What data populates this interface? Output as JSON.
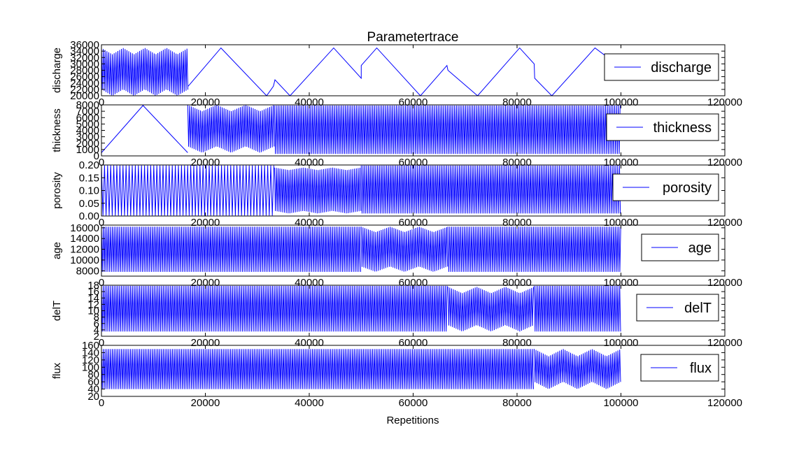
{
  "chart_data": {
    "type": "line",
    "title": "Parametertrace",
    "xlabel": "Repetitions",
    "x_ticks": [
      "0",
      "20000",
      "40000",
      "60000",
      "80000",
      "100000",
      "120000"
    ],
    "xlim": [
      0,
      120000
    ],
    "line_color": "#0000ff",
    "legend_position": "right",
    "grid": false,
    "n_repetitions": 100000,
    "panels": [
      {
        "name": "discharge",
        "ylabel": "discharge",
        "legend": "discharge",
        "ylim": [
          20000,
          36000
        ],
        "y_ticks": [
          "20000",
          "22000",
          "24000",
          "26000",
          "28000",
          "30000",
          "32000",
          "34000",
          "36000"
        ],
        "segments": [
          {
            "kind": "dense",
            "x": [
              0,
              16700
            ],
            "low": [
              20000,
              22000
            ],
            "high": [
              33000,
              35000
            ],
            "cycles": 4
          },
          {
            "kind": "path",
            "x": [
              16700,
              23000,
              31800,
              33100,
              33400,
              36300,
              44700,
              50000,
              50000,
              53000,
              61400,
              66500,
              66700,
              72400,
              80500,
              83300,
              83400,
              86700,
              95000,
              99900
            ],
            "y": [
              23000,
              35000,
              20000,
              23000,
              25000,
              20000,
              35000,
              25500,
              29500,
              35000,
              20000,
              29500,
              28000,
              20000,
              35000,
              30000,
              25500,
              20000,
              35000,
              29000
            ]
          }
        ]
      },
      {
        "name": "thickness",
        "ylabel": "thickness",
        "legend": "thickness",
        "ylim": [
          0,
          8000
        ],
        "y_ticks": [
          "0",
          "1000",
          "2000",
          "3000",
          "4000",
          "5000",
          "6000",
          "7000",
          "8000"
        ],
        "segments": [
          {
            "kind": "path",
            "x": [
              0,
              8000,
              16600
            ],
            "y": [
              500,
              7900,
              500
            ]
          },
          {
            "kind": "dense",
            "x": [
              16600,
              33300
            ],
            "low": [
              500,
              1500
            ],
            "high": [
              7000,
              8000
            ],
            "cycles": 3
          },
          {
            "kind": "dense",
            "x": [
              33300,
              100000
            ],
            "low": [
              300,
              300
            ],
            "high": [
              7900,
              7900
            ],
            "cycles": 0
          }
        ]
      },
      {
        "name": "porosity",
        "ylabel": "porosity",
        "legend": "porosity",
        "ylim": [
          0,
          0.2
        ],
        "y_ticks": [
          "0.00",
          "0.05",
          "0.10",
          "0.15",
          "0.20"
        ],
        "segments": [
          {
            "kind": "dense",
            "x": [
              0,
              33300
            ],
            "low": [
              0.002,
              0.002
            ],
            "high": [
              0.198,
              0.198
            ],
            "cycles": 0,
            "sparse": true
          },
          {
            "kind": "dense",
            "x": [
              33300,
              50000
            ],
            "low": [
              0.01,
              0.02
            ],
            "high": [
              0.18,
              0.19
            ],
            "cycles": 3
          },
          {
            "kind": "dense",
            "x": [
              50000,
              100000
            ],
            "low": [
              0.01,
              0.01
            ],
            "high": [
              0.198,
              0.198
            ],
            "cycles": 0
          }
        ]
      },
      {
        "name": "age",
        "ylabel": "age",
        "legend": "age",
        "ylim": [
          7000,
          16500
        ],
        "y_ticks": [
          "8000",
          "10000",
          "12000",
          "14000",
          "16000"
        ],
        "segments": [
          {
            "kind": "dense",
            "x": [
              0,
              50000
            ],
            "low": [
              7800,
              7800
            ],
            "high": [
              16200,
              16200
            ],
            "cycles": 0
          },
          {
            "kind": "dense",
            "x": [
              50000,
              66700
            ],
            "low": [
              7800,
              8800
            ],
            "high": [
              15200,
              16200
            ],
            "cycles": 3
          },
          {
            "kind": "dense",
            "x": [
              66700,
              100000
            ],
            "low": [
              7800,
              7800
            ],
            "high": [
              16200,
              16200
            ],
            "cycles": 0
          }
        ]
      },
      {
        "name": "delT",
        "ylabel": "delT",
        "legend": "delT",
        "ylim": [
          2,
          18
        ],
        "y_ticks": [
          "2",
          "4",
          "6",
          "8",
          "10",
          "12",
          "14",
          "16",
          "18"
        ],
        "segments": [
          {
            "kind": "dense",
            "x": [
              0,
              66700
            ],
            "low": [
              3.5,
              3.5
            ],
            "high": [
              17.8,
              17.8
            ],
            "cycles": 0
          },
          {
            "kind": "dense",
            "x": [
              66700,
              83300
            ],
            "low": [
              3.5,
              5.5
            ],
            "high": [
              15.5,
              17.5
            ],
            "cycles": 3
          },
          {
            "kind": "dense",
            "x": [
              83300,
              100000
            ],
            "low": [
              3.5,
              3.5
            ],
            "high": [
              17.8,
              17.8
            ],
            "cycles": 0
          }
        ]
      },
      {
        "name": "flux",
        "ylabel": "flux",
        "legend": "flux",
        "ylim": [
          20,
          160
        ],
        "y_ticks": [
          "20",
          "40",
          "60",
          "80",
          "100",
          "120",
          "140",
          "160"
        ],
        "segments": [
          {
            "kind": "dense",
            "x": [
              0,
              83300
            ],
            "low": [
              40,
              40
            ],
            "high": [
              150,
              150
            ],
            "cycles": 0
          },
          {
            "kind": "dense",
            "x": [
              83300,
              100000
            ],
            "low": [
              40,
              60
            ],
            "high": [
              130,
              150
            ],
            "cycles": 3
          }
        ]
      }
    ]
  }
}
